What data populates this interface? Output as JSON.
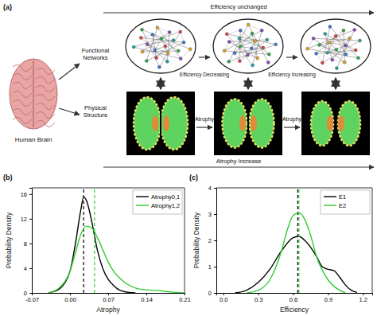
{
  "diagram": {
    "panel_label": "(a)",
    "top_arrow": "Efficiency unchanged",
    "source": "Human Brain",
    "rows": [
      "Functional Networks",
      "Physical Structure"
    ],
    "network_steps": [
      "Efficiency Decreasing",
      "Efficiency Increasing"
    ],
    "structure_steps": [
      "Atrophy",
      "Atrophy"
    ],
    "bottom_arrow": "Atrophy Increase"
  },
  "chart_data": [
    {
      "type": "line",
      "title": "(b)",
      "x_label": "Atrophy",
      "y_label": "Probability Density",
      "xlim": [
        -0.07,
        0.21
      ],
      "ylim": [
        0,
        17
      ],
      "xticks": [
        -0.07,
        {
          "value": 0,
          "label": "0.00"
        },
        0.07,
        0.14,
        0.21
      ],
      "yticks": [
        0,
        4,
        8,
        12,
        16
      ],
      "legend": "upper right",
      "series": [
        {
          "name": "Atrophy0,1",
          "color": "#000000",
          "mean": 0.025,
          "x": [
            -0.04,
            -0.02,
            0,
            0.01,
            0.02,
            0.025,
            0.03,
            0.04,
            0.05,
            0.06,
            0.07,
            0.08,
            0.09,
            0.1,
            0.12
          ],
          "values": [
            0,
            0.6,
            3.5,
            8,
            13.5,
            15.5,
            15,
            11.5,
            7,
            4,
            2.2,
            1.2,
            0.5,
            0.2,
            0
          ]
        },
        {
          "name": "Atrophy1,2",
          "color": "#33cc33",
          "mean": 0.045,
          "x": [
            -0.04,
            -0.02,
            0,
            0.01,
            0.02,
            0.03,
            0.04,
            0.05,
            0.06,
            0.07,
            0.08,
            0.09,
            0.1,
            0.12,
            0.14,
            0.16,
            0.18,
            0.2,
            0.21
          ],
          "values": [
            0,
            0.8,
            3.5,
            6.5,
            9.5,
            10.8,
            10.5,
            9,
            7,
            5,
            3.5,
            2.5,
            1.7,
            0.8,
            0.5,
            0.4,
            0.2,
            0.05,
            0
          ]
        }
      ]
    },
    {
      "type": "line",
      "title": "(c)",
      "x_label": "Efficiency",
      "y_label": "Probability Density",
      "xlim": [
        -0.06,
        1.28
      ],
      "ylim": [
        0,
        4
      ],
      "xticks": [
        {
          "value": 0,
          "label": "0.0"
        },
        0.3,
        0.6,
        0.9,
        1.2
      ],
      "yticks": [
        0,
        1,
        2,
        3,
        4
      ],
      "legend": "upper right",
      "series": [
        {
          "name": "E1",
          "color": "#000000",
          "mean": 0.64,
          "x": [
            0.1,
            0.2,
            0.3,
            0.4,
            0.5,
            0.6,
            0.65,
            0.7,
            0.8,
            0.85,
            0.9,
            0.95,
            1.0,
            1.05,
            1.1,
            1.15
          ],
          "values": [
            0,
            0.1,
            0.4,
            0.9,
            1.6,
            2.1,
            2.15,
            2.0,
            1.4,
            1.0,
            0.9,
            0.85,
            0.6,
            0.3,
            0.1,
            0.02
          ]
        },
        {
          "name": "E2",
          "color": "#33cc33",
          "mean": 0.65,
          "x": [
            0.2,
            0.3,
            0.4,
            0.5,
            0.55,
            0.6,
            0.65,
            0.7,
            0.75,
            0.8,
            0.9,
            1.0,
            1.05
          ],
          "values": [
            0,
            0.1,
            0.5,
            1.6,
            2.4,
            2.95,
            3.05,
            2.8,
            2.2,
            1.4,
            0.5,
            0.1,
            0
          ]
        }
      ]
    }
  ]
}
